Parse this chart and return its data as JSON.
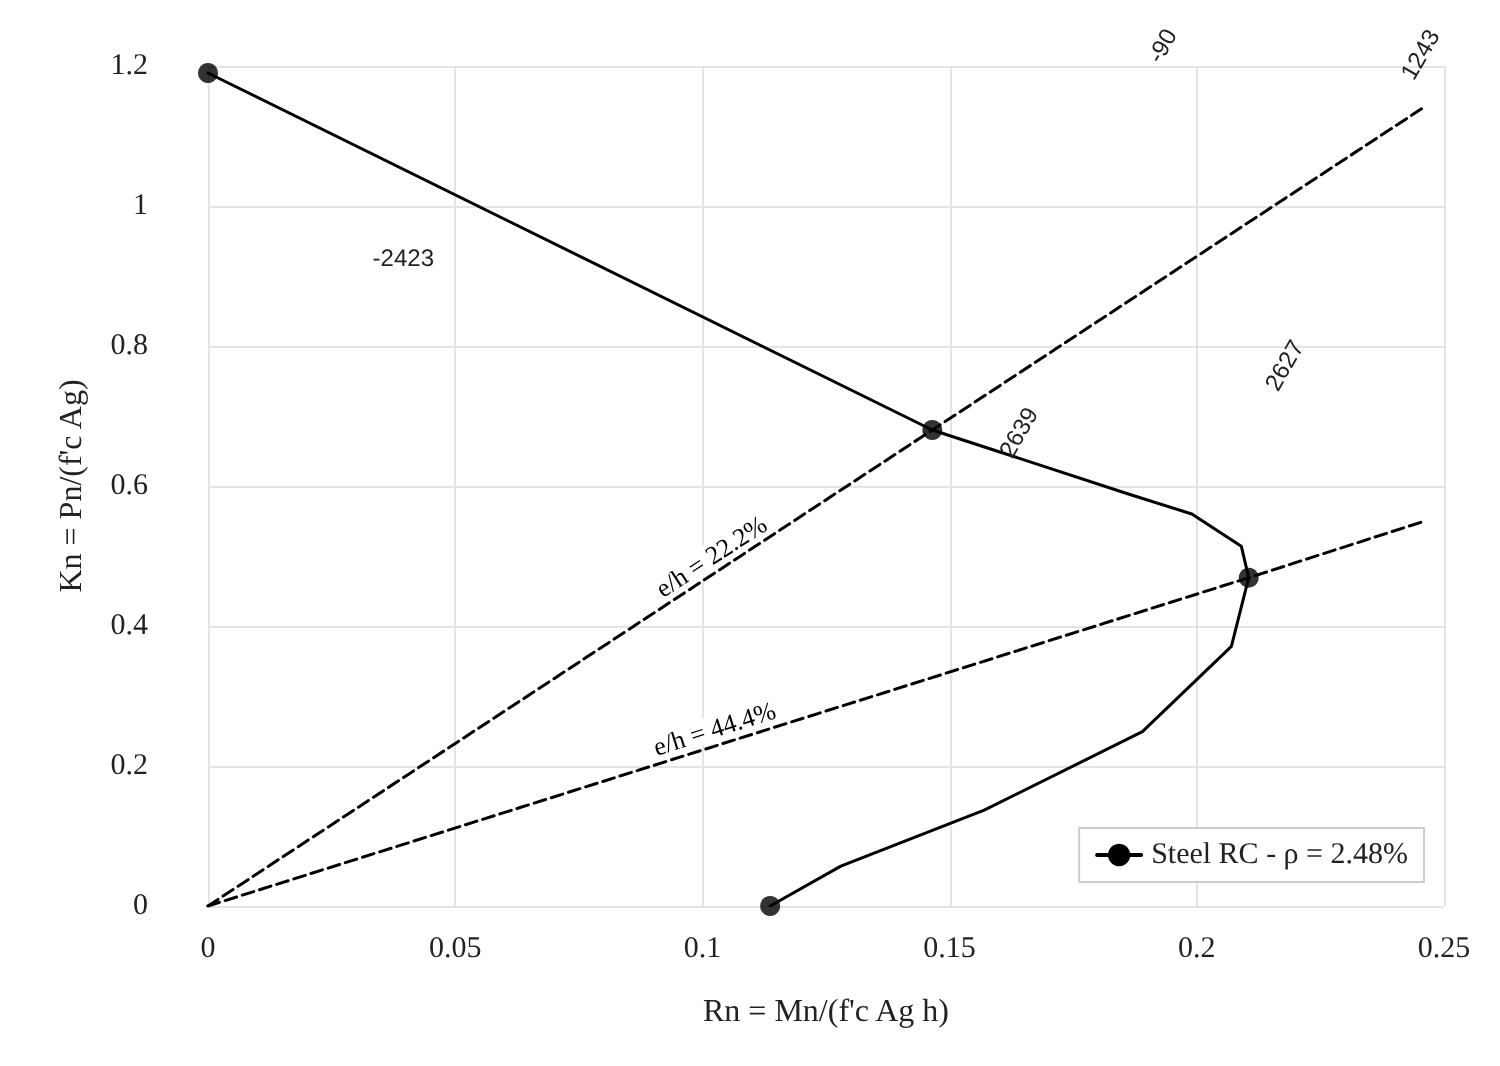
{
  "chart_data": {
    "type": "line",
    "xlabel": "Rn = Mn/(f'c Ag h)",
    "ylabel": "Kn = Pn/(f'c Ag)",
    "xlim": [
      0,
      0.25
    ],
    "ylim": [
      0,
      1.2
    ],
    "xticks": [
      0,
      0.05,
      0.1,
      0.15,
      0.2,
      0.25
    ],
    "yticks": [
      0,
      0.2,
      0.4,
      0.6,
      0.8,
      1,
      1.2
    ],
    "grid": true,
    "legend": "bottom right",
    "series": [
      {
        "name": "Steel RC - ρ = 2.48%",
        "color": "#000000",
        "marker": "none",
        "line_style": "solid",
        "x": [
          0,
          0.1465,
          0.16,
          0.186,
          0.199,
          0.209,
          0.2105,
          0.207,
          0.189,
          0.157,
          0.128,
          0.1137
        ],
        "values": [
          1.19,
          0.68,
          0.649,
          0.589,
          0.56,
          0.514,
          0.469,
          0.371,
          0.249,
          0.137,
          0.057,
          0
        ]
      },
      {
        "type": "scatter",
        "color": "#000000",
        "marker": "circle",
        "x": [
          0,
          0.1465,
          0.2105,
          0.1137
        ],
        "values": [
          1.19,
          0.68,
          0.469,
          0
        ]
      },
      {
        "name": "e/h = 22.2%",
        "color": "#000000",
        "marker": "none",
        "line_style": "dashed",
        "x": [
          0,
          0.1465,
          0.2457
        ],
        "values": [
          0,
          0.68,
          1.14
        ]
      },
      {
        "name": "e/h = 44.4%",
        "color": "#000000",
        "marker": "none",
        "line_style": "dashed",
        "x": [
          0,
          0.2105,
          0.2457
        ],
        "values": [
          0,
          0.469,
          0.549
        ]
      }
    ],
    "annotations": [
      "-2423",
      "-90",
      "2639",
      "1243",
      "2627"
    ]
  }
}
